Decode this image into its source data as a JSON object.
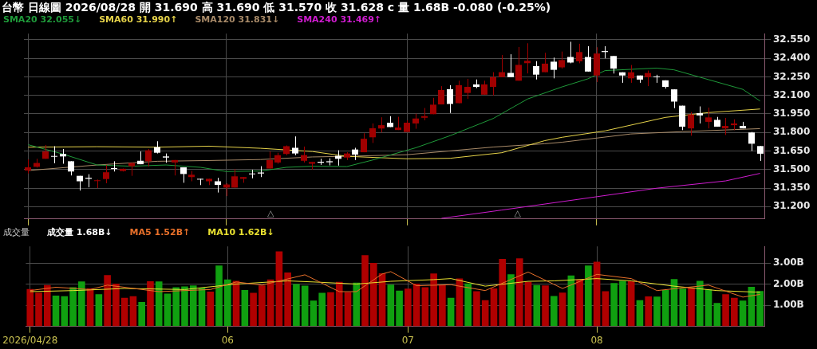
{
  "chart_data": [
    {
      "type": "candlestick",
      "title": "台幣 日線圖 2026/08/28 開 31.690 高 31.690 低 31.570 收 31.628 c 量 1.68B -0.080 (-0.25%)",
      "categories": [
        "2026/04/28",
        null,
        null,
        null,
        null,
        null,
        null,
        null,
        null,
        null,
        null,
        null,
        null,
        null,
        null,
        null,
        null,
        null,
        null,
        null,
        null,
        null,
        null,
        "06",
        null,
        null,
        null,
        null,
        null,
        null,
        null,
        null,
        null,
        null,
        null,
        null,
        null,
        null,
        null,
        null,
        null,
        null,
        null,
        null,
        "07",
        null,
        null,
        null,
        null,
        null,
        null,
        null,
        null,
        null,
        null,
        null,
        null,
        null,
        null,
        null,
        null,
        null,
        null,
        null,
        null,
        null,
        "08",
        null,
        null,
        null,
        null,
        null,
        null,
        null,
        null,
        null,
        null,
        null,
        null,
        null,
        null,
        null,
        null,
        null,
        null,
        null
      ],
      "ohlc": [
        [
          31.492,
          31.581,
          31.468,
          31.518
        ],
        [
          31.522,
          31.587,
          31.516,
          31.553
        ],
        [
          31.587,
          31.699,
          31.587,
          31.646
        ],
        [
          31.61,
          31.689,
          31.551,
          31.606
        ],
        [
          31.626,
          31.666,
          31.547,
          31.606
        ],
        [
          31.567,
          31.567,
          31.452,
          31.484
        ],
        [
          31.449,
          31.449,
          31.33,
          31.405
        ],
        [
          31.433,
          31.462,
          31.356,
          31.425
        ],
        [
          31.407,
          31.419,
          31.35,
          31.413
        ],
        [
          31.423,
          31.537,
          31.389,
          31.478
        ],
        [
          31.512,
          31.567,
          31.484,
          31.504
        ],
        [
          31.488,
          31.508,
          31.484,
          31.506
        ],
        [
          31.527,
          31.557,
          31.449,
          31.553
        ],
        [
          31.571,
          31.646,
          31.543,
          31.543
        ],
        [
          31.567,
          31.666,
          31.524,
          31.656
        ],
        [
          31.681,
          31.729,
          31.63,
          31.636
        ],
        [
          31.606,
          31.63,
          31.555,
          31.597
        ],
        [
          31.557,
          31.577,
          31.452,
          31.577
        ],
        [
          31.518,
          31.518,
          31.393,
          31.464
        ],
        [
          31.439,
          31.488,
          31.405,
          31.458
        ],
        [
          31.425,
          31.425,
          31.374,
          31.419
        ],
        [
          31.405,
          31.425,
          31.374,
          31.425
        ],
        [
          31.405,
          31.433,
          31.314,
          31.376
        ],
        [
          31.354,
          31.389,
          31.285,
          31.379
        ],
        [
          31.354,
          31.504,
          31.354,
          31.445
        ],
        [
          31.425,
          31.439,
          31.393,
          31.439
        ],
        [
          31.468,
          31.498,
          31.429,
          31.462
        ],
        [
          31.476,
          31.527,
          31.439,
          31.468
        ],
        [
          31.508,
          31.646,
          31.508,
          31.577
        ],
        [
          31.557,
          31.636,
          31.547,
          31.616
        ],
        [
          31.626,
          31.695,
          31.616,
          31.689
        ],
        [
          31.676,
          31.768,
          31.616,
          31.63
        ],
        [
          31.571,
          31.686,
          31.557,
          31.617
        ],
        [
          31.547,
          31.561,
          31.498,
          31.561
        ],
        [
          31.563,
          31.587,
          31.538,
          31.555
        ],
        [
          31.567,
          31.591,
          31.534,
          31.559
        ],
        [
          31.611,
          31.656,
          31.532,
          31.587
        ],
        [
          31.597,
          31.64,
          31.577,
          31.63
        ],
        [
          31.662,
          31.676,
          31.577,
          31.621
        ],
        [
          31.64,
          31.794,
          31.64,
          31.749
        ],
        [
          31.761,
          31.873,
          31.715,
          31.834
        ],
        [
          31.832,
          31.923,
          31.8,
          31.859
        ],
        [
          31.879,
          31.932,
          31.844,
          31.844
        ],
        [
          31.82,
          31.927,
          31.82,
          31.84
        ],
        [
          31.804,
          31.899,
          31.804,
          31.879
        ],
        [
          31.873,
          31.952,
          31.83,
          31.913
        ],
        [
          31.919,
          31.998,
          31.899,
          31.932
        ],
        [
          31.948,
          32.08,
          31.948,
          32.025
        ],
        [
          32.027,
          32.175,
          32.027,
          32.144
        ],
        [
          32.15,
          32.183,
          31.958,
          32.031
        ],
        [
          32.037,
          32.219,
          32.037,
          32.183
        ],
        [
          32.12,
          32.234,
          32.071,
          32.169
        ],
        [
          32.189,
          32.229,
          32.159,
          32.169
        ],
        [
          32.106,
          32.219,
          32.106,
          32.189
        ],
        [
          32.169,
          32.288,
          32.1,
          32.248
        ],
        [
          32.248,
          32.427,
          32.248,
          32.288
        ],
        [
          32.282,
          32.433,
          32.248,
          32.248
        ],
        [
          32.219,
          32.492,
          32.219,
          32.347
        ],
        [
          32.361,
          32.522,
          32.278,
          32.38
        ],
        [
          32.337,
          32.377,
          32.229,
          32.268
        ],
        [
          32.288,
          32.445,
          32.288,
          32.357
        ],
        [
          32.373,
          32.406,
          32.238,
          32.307
        ],
        [
          32.327,
          32.455,
          32.317,
          32.386
        ],
        [
          32.411,
          32.534,
          32.36,
          32.366
        ],
        [
          32.376,
          32.518,
          32.36,
          32.451
        ],
        [
          32.411,
          32.498,
          32.293,
          32.293
        ],
        [
          32.261,
          32.49,
          32.208,
          32.439
        ],
        [
          32.459,
          32.498,
          32.4,
          32.451
        ],
        [
          32.419,
          32.419,
          32.277,
          32.317
        ],
        [
          32.287,
          32.287,
          32.202,
          32.261
        ],
        [
          32.238,
          32.346,
          32.202,
          32.287
        ],
        [
          32.261,
          32.261,
          32.202,
          32.228
        ],
        [
          32.248,
          32.301,
          32.175,
          32.281
        ],
        [
          32.253,
          32.267,
          32.202,
          32.248
        ],
        [
          32.222,
          32.222,
          32.155,
          32.169
        ],
        [
          32.149,
          32.149,
          31.997,
          32.05
        ],
        [
          32.017,
          32.017,
          31.819,
          31.847
        ],
        [
          31.833,
          31.965,
          31.774,
          31.946
        ],
        [
          31.957,
          32.011,
          31.873,
          31.938
        ],
        [
          31.886,
          32.001,
          31.833,
          31.922
        ],
        [
          31.902,
          31.926,
          31.847,
          31.847
        ],
        [
          31.833,
          31.918,
          31.78,
          31.853
        ],
        [
          31.859,
          31.906,
          31.819,
          31.873
        ],
        [
          31.853,
          31.886,
          31.833,
          31.833
        ],
        [
          31.8,
          31.804,
          31.65,
          31.709
        ],
        [
          31.69,
          31.69,
          31.57,
          31.628
        ]
      ],
      "colors": [
        "#a00000",
        "#a00000",
        "#a00000",
        "#ffffff",
        "#ffffff",
        "#ffffff",
        "#ffffff",
        "#ffffff",
        "#a00000",
        "#a00000",
        "#ffffff",
        "#a00000",
        "#a00000",
        "#ffffff",
        "#a00000",
        "#ffffff",
        "#ffffff",
        "#a00000",
        "#ffffff",
        "#a00000",
        "#ffffff",
        "#a00000",
        "#ffffff",
        "#a00000",
        "#a00000",
        "#a00000",
        "#ffffff",
        "#ffffff",
        "#a00000",
        "#a00000",
        "#a00000",
        "#ffffff",
        "#a00000",
        "#a00000",
        "#ffffff",
        "#ffffff",
        "#ffffff",
        "#a00000",
        "#ffffff",
        "#a00000",
        "#a00000",
        "#a00000",
        "#ffffff",
        "#a00000",
        "#a00000",
        "#a00000",
        "#a00000",
        "#a00000",
        "#a00000",
        "#ffffff",
        "#a00000",
        "#a00000",
        "#ffffff",
        "#a00000",
        "#a00000",
        "#a00000",
        "#ffffff",
        "#a00000",
        "#a00000",
        "#ffffff",
        "#a00000",
        "#ffffff",
        "#a00000",
        "#ffffff",
        "#a00000",
        "#ffffff",
        "#a00000",
        "#ffffff",
        "#ffffff",
        "#ffffff",
        "#a00000",
        "#ffffff",
        "#a00000",
        "#ffffff",
        "#ffffff",
        "#ffffff",
        "#ffffff",
        "#a00000",
        "#ffffff",
        "#a00000",
        "#ffffff",
        "#a00000",
        "#a00000",
        "#ffffff",
        "#ffffff",
        "#ffffff"
      ],
      "series": [
        {
          "type": "line",
          "name": "SMA20 32.055↓",
          "color": "#1f9a3a",
          "values": [
            31.701,
            null,
            null,
            null,
            31.626,
            null,
            null,
            null,
            31.537,
            null,
            null,
            null,
            31.527,
            null,
            null,
            null,
            31.537,
            null,
            null,
            null,
            31.518,
            null,
            null,
            31.484,
            null,
            null,
            null,
            31.488,
            null,
            null,
            31.518,
            null,
            null,
            31.527,
            null,
            null,
            null,
            31.524,
            null,
            null,
            31.577,
            null,
            null,
            null,
            null,
            31.676,
            null,
            null,
            null,
            31.774,
            null,
            null,
            null,
            null,
            31.913,
            null,
            null,
            null,
            32.071,
            null,
            null,
            null,
            32.169,
            null,
            null,
            32.234,
            null,
            32.301,
            null,
            null,
            null,
            null,
            null,
            32.321,
            null,
            32.307,
            null,
            null,
            null,
            32.228,
            null,
            null,
            null,
            32.149,
            null,
            32.055
          ]
        },
        {
          "type": "line",
          "name": "SMA60 31.990↑",
          "color": "#e6d34a",
          "values": [
            31.681,
            null,
            null,
            null,
            null,
            null,
            null,
            null,
            31.685,
            null,
            null,
            null,
            null,
            null,
            null,
            31.681,
            null,
            null,
            null,
            null,
            null,
            31.689,
            null,
            null,
            null,
            null,
            null,
            31.672,
            null,
            null,
            null,
            null,
            null,
            31.646,
            null,
            null,
            null,
            31.607,
            null,
            null,
            null,
            null,
            null,
            null,
            31.587,
            null,
            null,
            null,
            null,
            31.591,
            null,
            null,
            null,
            null,
            null,
            31.636,
            null,
            null,
            null,
            null,
            31.734,
            null,
            31.761,
            null,
            null,
            null,
            null,
            31.813,
            null,
            null,
            null,
            null,
            null,
            null,
            31.922,
            null,
            null,
            null,
            null,
            31.961,
            null,
            null,
            null,
            null,
            null,
            31.99
          ]
        },
        {
          "type": "line",
          "name": "SMA120 31.831↓",
          "color": "#a88a68",
          "values": [
            31.492,
            null,
            null,
            null,
            null,
            null,
            null,
            null,
            31.537,
            null,
            null,
            null,
            null,
            null,
            null,
            31.567,
            null,
            null,
            null,
            null,
            null,
            31.573,
            null,
            null,
            null,
            null,
            null,
            31.581,
            null,
            null,
            null,
            null,
            null,
            31.602,
            null,
            null,
            null,
            31.607,
            null,
            null,
            null,
            null,
            null,
            null,
            31.62,
            null,
            null,
            null,
            null,
            null,
            null,
            null,
            null,
            null,
            31.682,
            null,
            null,
            null,
            null,
            null,
            31.709,
            null,
            31.721,
            null,
            null,
            null,
            null,
            null,
            null,
            null,
            31.788,
            null,
            null,
            null,
            null,
            null,
            31.807,
            null,
            null,
            null,
            null,
            null,
            null,
            null,
            null,
            31.831
          ]
        },
        {
          "type": "line",
          "name": "SMA240 31.469↑",
          "color": "#d01cd0",
          "values": [
            null,
            null,
            null,
            null,
            null,
            null,
            null,
            null,
            null,
            null,
            null,
            null,
            null,
            null,
            null,
            null,
            null,
            null,
            null,
            null,
            null,
            null,
            null,
            null,
            null,
            null,
            null,
            null,
            null,
            null,
            null,
            null,
            null,
            null,
            null,
            null,
            null,
            null,
            null,
            null,
            null,
            null,
            null,
            null,
            null,
            null,
            null,
            null,
            31.105,
            null,
            null,
            null,
            null,
            null,
            null,
            31.172,
            null,
            null,
            null,
            null,
            null,
            null,
            null,
            null,
            31.26,
            null,
            null,
            null,
            null,
            null,
            null,
            null,
            null,
            31.349,
            null,
            null,
            null,
            null,
            null,
            null,
            null,
            31.408,
            null,
            null,
            null,
            31.469
          ]
        }
      ],
      "ylim": [
        31.1,
        32.6
      ],
      "yticks": [
        {
          "value": 31.2,
          "label": "31.200"
        },
        {
          "value": 31.35,
          "label": "31.350"
        },
        {
          "value": 31.5,
          "label": "31.500"
        },
        {
          "value": 31.65,
          "label": "31.650"
        },
        {
          "value": 31.8,
          "label": "31.800"
        },
        {
          "value": 31.95,
          "label": "31.950"
        },
        {
          "value": 32.1,
          "label": "32.100"
        },
        {
          "value": 32.25,
          "label": "32.250"
        },
        {
          "value": 32.4,
          "label": "32.400"
        },
        {
          "value": 32.55,
          "label": "32.550"
        }
      ],
      "tick_labels": "y",
      "grid": true,
      "legend": "top left",
      "marker": "none",
      "annotations": [
        "△",
        "△"
      ]
    },
    {
      "type": "bar",
      "title": "成交量",
      "categories": [
        "2026/04/28",
        null,
        null,
        null,
        null,
        null,
        null,
        null,
        null,
        null,
        null,
        null,
        null,
        null,
        null,
        null,
        null,
        null,
        null,
        null,
        null,
        null,
        null,
        "06",
        null,
        null,
        null,
        null,
        null,
        null,
        null,
        null,
        null,
        null,
        null,
        null,
        null,
        null,
        null,
        null,
        null,
        null,
        null,
        null,
        "07",
        null,
        null,
        null,
        null,
        null,
        null,
        null,
        null,
        null,
        null,
        null,
        null,
        null,
        null,
        null,
        null,
        null,
        null,
        null,
        null,
        null,
        "08",
        null,
        null,
        null,
        null,
        null,
        null,
        null,
        null,
        null,
        null,
        null,
        null,
        null,
        null,
        null,
        null,
        null,
        null,
        null
      ],
      "series": [
        {
          "type": "bar",
          "colors": [
            "#b00000",
            "#b00000",
            "#b00000",
            "#10a010",
            "#10a010",
            "#10a010",
            "#10a010",
            "#b00000",
            "#10a010",
            "#b00000",
            "#b00000",
            "#b00000",
            "#b00000",
            "#10a010",
            "#b00000",
            "#10a010",
            "#10a010",
            "#10a010",
            "#10a010",
            "#10a010",
            "#10a010",
            "#b00000",
            "#10a010",
            "#10a010",
            "#b00000",
            "#10a010",
            "#b00000",
            "#b00000",
            "#b00000",
            "#b00000",
            "#b00000",
            "#10a010",
            "#10a010",
            "#10a010",
            "#10a010",
            "#b00000",
            "#b00000",
            "#b00000",
            "#10a010",
            "#b00000",
            "#b00000",
            "#b00000",
            "#10a010",
            "#10a010",
            "#b00000",
            "#b00000",
            "#b00000",
            "#b00000",
            "#b00000",
            "#10a010",
            "#b00000",
            "#10a010",
            "#b00000",
            "#b00000",
            "#b00000",
            "#b00000",
            "#10a010",
            "#b00000",
            "#b00000",
            "#10a010",
            "#b00000",
            "#10a010",
            "#b00000",
            "#10a010",
            "#b00000",
            "#10a010",
            "#b00000",
            "#b00000",
            "#10a010",
            "#10a010",
            "#b00000",
            "#10a010",
            "#b00000",
            "#10a010",
            "#10a010",
            "#10a010",
            "#10a010",
            "#b00000",
            "#10a010",
            "#10a010",
            "#10a010",
            "#b00000",
            "#b00000",
            "#10a010",
            "#10a010",
            "#10a010"
          ],
          "values": [
            1.77,
            1.6,
            1.96,
            1.46,
            1.43,
            1.86,
            2.13,
            1.8,
            1.53,
            2.44,
            2.03,
            1.36,
            1.43,
            1.16,
            2.14,
            2.13,
            1.56,
            1.86,
            1.9,
            1.94,
            1.84,
            1.65,
            2.89,
            2.23,
            2.16,
            1.73,
            1.59,
            1.94,
            2.23,
            3.56,
            2.56,
            2.01,
            1.93,
            1.22,
            1.59,
            1.62,
            2.11,
            1.62,
            2.08,
            3.38,
            3.01,
            2.52,
            1.98,
            1.7,
            1.79,
            2.03,
            1.86,
            2.51,
            1.96,
            1.36,
            2.27,
            2.04,
            1.67,
            1.24,
            1.8,
            3.2,
            2.47,
            3.23,
            2.11,
            1.96,
            1.94,
            1.44,
            1.6,
            2.42,
            2.22,
            2.89,
            3.07,
            1.67,
            2.06,
            2.16,
            2.14,
            1.24,
            1.42,
            1.41,
            1.73,
            2.25,
            1.79,
            1.84,
            2.16,
            1.75,
            1.11,
            1.53,
            1.36,
            1.22,
            1.88,
            1.68
          ]
        },
        {
          "type": "line",
          "name": "MA5 1.52B↑",
          "color": "#e8702a",
          "values": [
            1.7,
            null,
            null,
            1.86,
            null,
            null,
            null,
            1.75,
            null,
            1.96,
            null,
            null,
            null,
            null,
            null,
            1.65,
            null,
            null,
            null,
            null,
            null,
            1.75,
            null,
            null,
            2.11,
            null,
            null,
            1.96,
            null,
            null,
            null,
            null,
            2.45,
            null,
            null,
            null,
            1.65,
            null,
            1.65,
            null,
            null,
            2.49,
            2.6,
            null,
            null,
            1.93,
            null,
            null,
            null,
            1.98,
            null,
            null,
            null,
            1.7,
            null,
            null,
            null,
            null,
            2.58,
            null,
            null,
            null,
            1.8,
            null,
            null,
            null,
            2.47,
            null,
            null,
            null,
            2.27,
            null,
            null,
            1.7,
            null,
            null,
            null,
            null,
            null,
            1.96,
            null,
            null,
            null,
            1.39,
            null,
            1.52
          ]
        },
        {
          "type": "line",
          "name": "MA10 1.62B↓",
          "color": "#e8e030",
          "values": [
            1.65,
            null,
            null,
            null,
            null,
            1.7,
            null,
            null,
            null,
            null,
            null,
            1.8,
            null,
            null,
            null,
            null,
            null,
            null,
            1.75,
            null,
            null,
            null,
            null,
            null,
            2.01,
            null,
            null,
            null,
            null,
            null,
            2.16,
            null,
            null,
            2.11,
            null,
            null,
            null,
            null,
            2.01,
            null,
            null,
            null,
            2.14,
            null,
            null,
            null,
            null,
            2.22,
            null,
            2.27,
            null,
            null,
            null,
            1.91,
            null,
            null,
            null,
            null,
            2.14,
            null,
            null,
            2.16,
            null,
            null,
            null,
            null,
            2.27,
            null,
            null,
            null,
            2.16,
            null,
            null,
            null,
            null,
            1.91,
            null,
            null,
            null,
            null,
            1.7,
            null,
            null,
            null,
            null,
            1.62
          ]
        }
      ],
      "ylim": [
        0,
        3.8
      ],
      "yticks": [
        {
          "value": 1,
          "label": "1.00B"
        },
        {
          "value": 2,
          "label": "2.00B"
        },
        {
          "value": 3,
          "label": "3.00B"
        }
      ],
      "grid": true,
      "legend": "top left",
      "marker": "none",
      "annotations": [
        "成交量 1.68B↓"
      ]
    }
  ]
}
